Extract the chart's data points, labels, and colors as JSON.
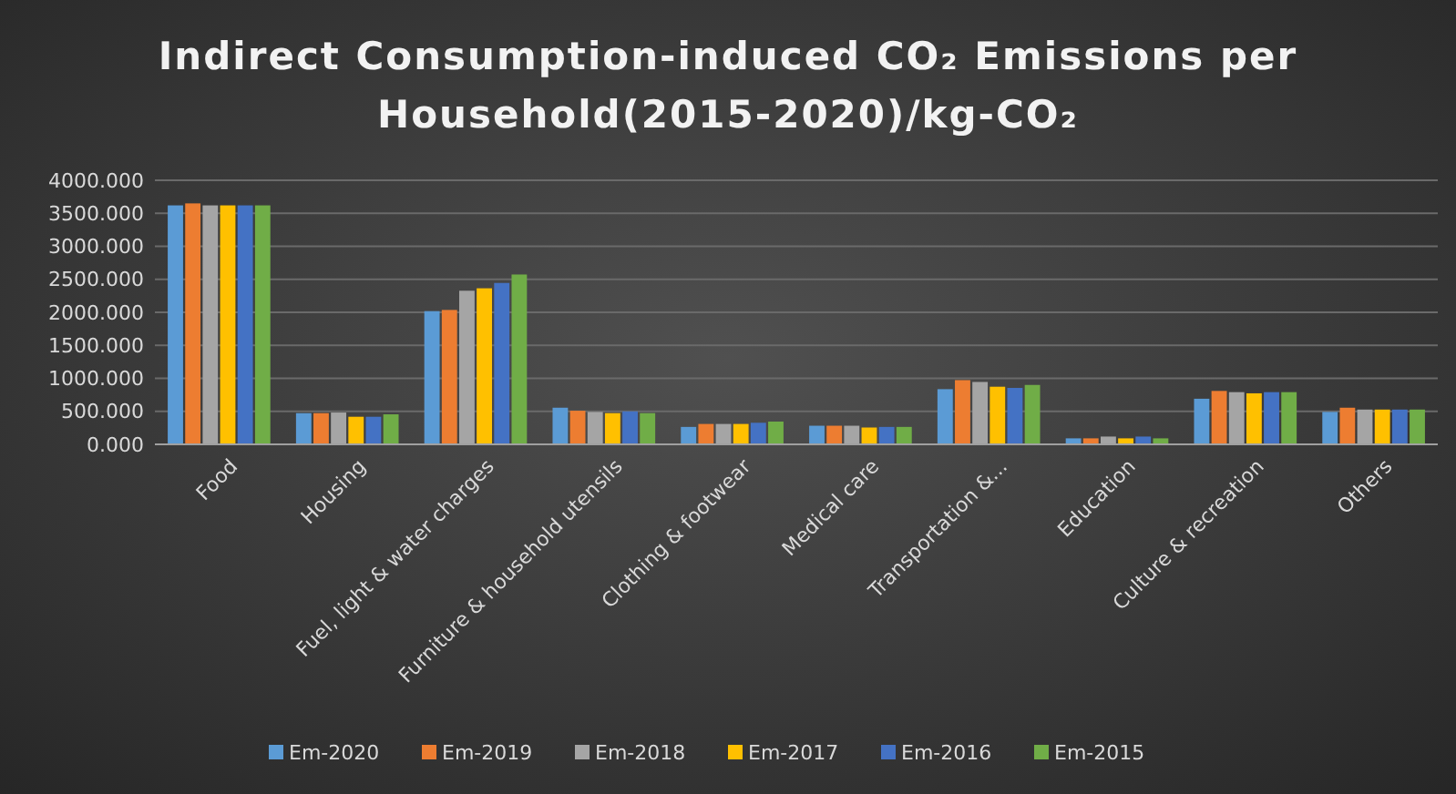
{
  "chart_data": {
    "type": "bar",
    "title": "Indirect Consumption-induced CO₂ Emissions per Household(2015-2020)/kg-CO₂",
    "categories": [
      "Food",
      "Housing",
      "Fuel, light & water charges",
      "Furniture & household utensils",
      "Clothing & footwear",
      "Medical care",
      "Transportation &...",
      "Education",
      "Culture & recreation",
      "Others"
    ],
    "series": [
      {
        "name": "Em-2020",
        "color": "#5b9bd5",
        "values": [
          3620,
          473,
          2018,
          555,
          264,
          282,
          836,
          91,
          691,
          491
        ]
      },
      {
        "name": "Em-2019",
        "color": "#ed7d31",
        "values": [
          3650,
          473,
          2036,
          509,
          309,
          282,
          973,
          91,
          809,
          555
        ]
      },
      {
        "name": "Em-2018",
        "color": "#a5a5a5",
        "values": [
          3620,
          482,
          2327,
          491,
          309,
          282,
          945,
          118,
          791,
          527
        ]
      },
      {
        "name": "Em-2017",
        "color": "#ffc000",
        "values": [
          3620,
          418,
          2364,
          473,
          309,
          255,
          873,
          91,
          773,
          527
        ]
      },
      {
        "name": "Em-2016",
        "color": "#4472c4",
        "values": [
          3620,
          418,
          2445,
          500,
          327,
          264,
          855,
          118,
          791,
          527
        ]
      },
      {
        "name": "Em-2015",
        "color": "#70ad47",
        "values": [
          3620,
          455,
          2573,
          473,
          345,
          264,
          900,
          91,
          791,
          527
        ]
      }
    ],
    "ylim": [
      0,
      4000
    ],
    "yticks": [
      {
        "value": 0,
        "label": "0.000"
      },
      {
        "value": 500,
        "label": "500.000"
      },
      {
        "value": 1000,
        "label": "1000.000"
      },
      {
        "value": 1500,
        "label": "1500.000"
      },
      {
        "value": 2000,
        "label": "2000.000"
      },
      {
        "value": 2500,
        "label": "2500.000"
      },
      {
        "value": 3000,
        "label": "3000.000"
      },
      {
        "value": 3500,
        "label": "3500.000"
      },
      {
        "value": 4000,
        "label": "4000.000"
      }
    ],
    "grid": "y",
    "legend": "bottom"
  }
}
